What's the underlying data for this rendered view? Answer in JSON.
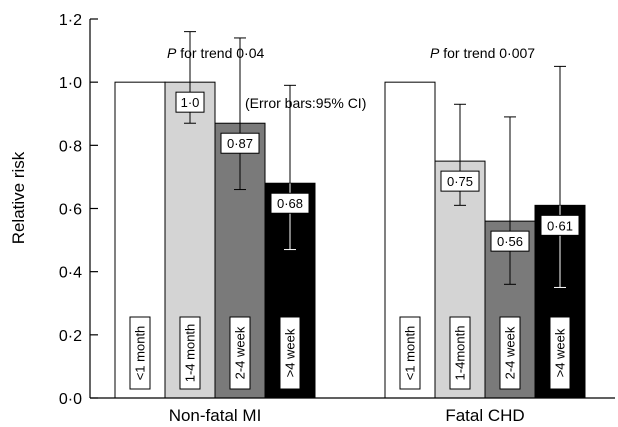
{
  "chart_data": {
    "type": "bar",
    "ylabel": "Relative risk",
    "ylim": [
      0,
      1.2
    ],
    "yticks": [
      "0·0",
      "0·2",
      "0·4",
      "0·6",
      "0·8",
      "1·0",
      "1·2"
    ],
    "groups": [
      {
        "name": "Non-fatal MI",
        "annotation": {
          "prefix": "P",
          "text": " for trend 0·04"
        },
        "bars": [
          {
            "category": "<1 month",
            "value": 1.0,
            "label": "",
            "err_low": null,
            "err_high": null,
            "color": "#ffffff"
          },
          {
            "category": "1-4 month",
            "value": 1.0,
            "label": "1·0",
            "err_low": 0.87,
            "err_high": 1.16,
            "color": "#d4d4d4"
          },
          {
            "category": "2-4 week",
            "value": 0.87,
            "label": "0·87",
            "err_low": 0.66,
            "err_high": 1.14,
            "color": "#7a7a7a"
          },
          {
            "category": ">4 week",
            "value": 0.68,
            "label": "0·68",
            "err_low": 0.47,
            "err_high": 0.99,
            "color": "#000000"
          }
        ]
      },
      {
        "name": "Fatal CHD",
        "annotation": {
          "prefix": "P",
          "text": " for trend 0·007"
        },
        "bars": [
          {
            "category": "<1 month",
            "value": 1.0,
            "label": "",
            "err_low": null,
            "err_high": null,
            "color": "#ffffff"
          },
          {
            "category": "1-4month",
            "value": 0.75,
            "label": "0·75",
            "err_low": 0.61,
            "err_high": 0.93,
            "color": "#d4d4d4"
          },
          {
            "category": "2-4 week",
            "value": 0.56,
            "label": "0·56",
            "err_low": 0.36,
            "err_high": 0.89,
            "color": "#7a7a7a"
          },
          {
            "category": ">4 week",
            "value": 0.61,
            "label": "0·61",
            "err_low": 0.35,
            "err_high": 1.05,
            "color": "#000000"
          }
        ]
      }
    ],
    "note": "(Error bars:95% CI)"
  }
}
